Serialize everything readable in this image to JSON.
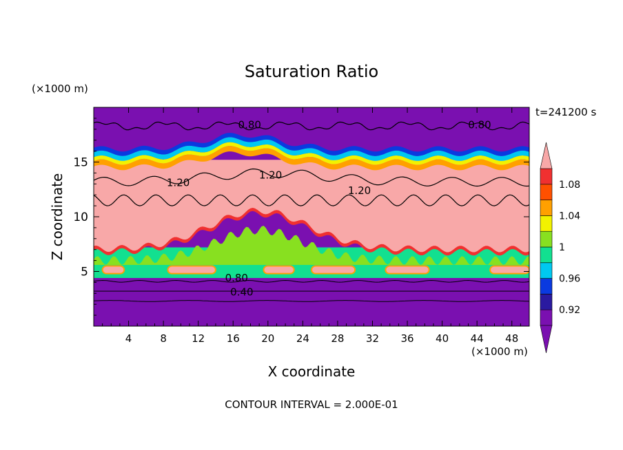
{
  "chart_data": {
    "type": "heatmap",
    "title": "Saturation Ratio",
    "xlabel": "X coordinate",
    "ylabel": "Z coordinate",
    "x_unit": "(×1000 m)",
    "y_unit": "(×1000 m)",
    "time_label": "t=241200 s",
    "footer": "CONTOUR INTERVAL = 2.000E-01",
    "xlim": [
      0,
      50
    ],
    "ylim": [
      0,
      20
    ],
    "x_ticks": [
      "4",
      "8",
      "12",
      "16",
      "20",
      "24",
      "28",
      "32",
      "36",
      "40",
      "44",
      "48"
    ],
    "y_ticks": [
      "5",
      "10",
      "15"
    ],
    "colorbar_ticks": [
      "0.92",
      "0.96",
      "1",
      "1.04",
      "1.08"
    ],
    "colorbar_levels": [
      0.9,
      0.92,
      0.94,
      0.96,
      0.98,
      1.0,
      1.02,
      1.04,
      1.06,
      1.08,
      1.1
    ],
    "colorbar_colors": [
      "#7a10b0",
      "#2a1aa0",
      "#0a3ae0",
      "#00c8f0",
      "#12e090",
      "#88e020",
      "#f2f200",
      "#ffa000",
      "#ff5000",
      "#f03030",
      "#f8a8a8"
    ],
    "contour_labels": [
      {
        "text": "0.80",
        "x": 17.9,
        "z": 18.4
      },
      {
        "text": "0.80",
        "x": 44.3,
        "z": 18.4
      },
      {
        "text": "1.20",
        "x": 9.7,
        "z": 13.1
      },
      {
        "text": "1.20",
        "x": 20.3,
        "z": 13.8
      },
      {
        "text": "1.20",
        "x": 30.5,
        "z": 12.4
      },
      {
        "text": "0.80",
        "x": 16.4,
        "z": 4.4
      },
      {
        "text": "0.40",
        "x": 17.0,
        "z": 3.1
      }
    ]
  }
}
